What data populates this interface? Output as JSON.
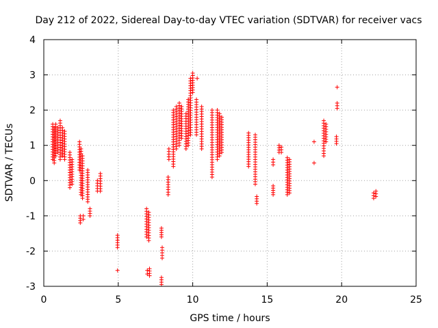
{
  "chart_data": {
    "type": "scatter",
    "title": "Day 212 of 2022, Sidereal Day-to-day VTEC variation (SDTVAR) for receiver vacs",
    "xlabel": "GPS time / hours",
    "ylabel": "SDTVAR / TECUs",
    "xlim": [
      0,
      25
    ],
    "ylim": [
      -3,
      4
    ],
    "xticks": [
      0,
      5,
      10,
      15,
      20,
      25
    ],
    "yticks": [
      -3,
      -2,
      -1,
      0,
      1,
      2,
      3,
      4
    ],
    "grid": true,
    "marker": "plus",
    "color": "#ff0000",
    "clusters": [
      {
        "x": 0.6,
        "y_from": 0.6,
        "y_to": 1.6
      },
      {
        "x": 0.7,
        "y_from": 0.5,
        "y_to": 1.5
      },
      {
        "x": 0.8,
        "y_from": 0.7,
        "y_to": 1.6
      },
      {
        "x": 0.95,
        "y_from": 0.8,
        "y_to": 1.5
      },
      {
        "x": 1.1,
        "y_from": 0.6,
        "y_to": 1.7
      },
      {
        "x": 1.25,
        "y_from": 0.7,
        "y_to": 1.5
      },
      {
        "x": 1.4,
        "y_from": 0.6,
        "y_to": 1.4
      },
      {
        "x": 1.75,
        "y_from": -0.2,
        "y_to": 0.8
      },
      {
        "x": 1.9,
        "y_from": -0.1,
        "y_to": 0.6
      },
      {
        "x": 2.4,
        "y_from": 0.3,
        "y_to": 1.1
      },
      {
        "x": 2.5,
        "y_from": -0.4,
        "y_to": 0.9
      },
      {
        "x": 2.6,
        "y_from": -0.5,
        "y_to": 0.7
      },
      {
        "x": 2.45,
        "y_from": -1.2,
        "y_to": -1.0
      },
      {
        "x": 2.65,
        "y_from": -1.1,
        "y_to": -1.0
      },
      {
        "x": 2.95,
        "y_from": -0.6,
        "y_to": 0.3
      },
      {
        "x": 3.1,
        "y_from": -1.0,
        "y_to": -0.8
      },
      {
        "x": 3.6,
        "y_from": -0.3,
        "y_to": 0.0
      },
      {
        "x": 3.8,
        "y_from": -0.3,
        "y_to": 0.2
      },
      {
        "x": 4.95,
        "y_from": -1.9,
        "y_to": -1.55
      },
      {
        "x": 4.95,
        "y_from": -2.55,
        "y_to": -2.55
      },
      {
        "x": 6.9,
        "y_from": -1.6,
        "y_to": -0.8
      },
      {
        "x": 7.05,
        "y_from": -1.7,
        "y_to": -0.9
      },
      {
        "x": 7.1,
        "y_from": -2.7,
        "y_to": -2.5
      },
      {
        "x": 6.95,
        "y_from": -2.65,
        "y_to": -2.55
      },
      {
        "x": 7.9,
        "y_from": -1.6,
        "y_to": -1.35
      },
      {
        "x": 7.95,
        "y_from": -2.2,
        "y_to": -1.9
      },
      {
        "x": 7.9,
        "y_from": -2.95,
        "y_to": -2.75
      },
      {
        "x": 8.35,
        "y_from": -0.4,
        "y_to": 0.1
      },
      {
        "x": 8.4,
        "y_from": 0.6,
        "y_to": 0.9
      },
      {
        "x": 8.7,
        "y_from": 0.4,
        "y_to": 2.0
      },
      {
        "x": 8.9,
        "y_from": 0.9,
        "y_to": 2.1
      },
      {
        "x": 9.1,
        "y_from": 1.0,
        "y_to": 2.2
      },
      {
        "x": 9.25,
        "y_from": 1.2,
        "y_to": 2.1
      },
      {
        "x": 9.55,
        "y_from": 0.9,
        "y_to": 1.9
      },
      {
        "x": 9.7,
        "y_from": 1.0,
        "y_to": 2.3
      },
      {
        "x": 9.85,
        "y_from": 1.3,
        "y_to": 2.9
      },
      {
        "x": 10.0,
        "y_from": 2.5,
        "y_to": 3.05
      },
      {
        "x": 10.25,
        "y_from": 1.3,
        "y_to": 2.3
      },
      {
        "x": 10.3,
        "y_from": 2.9,
        "y_to": 2.9
      },
      {
        "x": 10.6,
        "y_from": 0.9,
        "y_to": 2.1
      },
      {
        "x": 11.3,
        "y_from": 0.1,
        "y_to": 2.0
      },
      {
        "x": 11.65,
        "y_from": 0.6,
        "y_to": 2.0
      },
      {
        "x": 11.8,
        "y_from": 0.7,
        "y_to": 1.9
      },
      {
        "x": 11.95,
        "y_from": 0.8,
        "y_to": 1.8
      },
      {
        "x": 13.75,
        "y_from": 0.4,
        "y_to": 1.35
      },
      {
        "x": 14.2,
        "y_from": -0.1,
        "y_to": 1.3
      },
      {
        "x": 14.3,
        "y_from": -0.65,
        "y_to": -0.45
      },
      {
        "x": 15.4,
        "y_from": -0.4,
        "y_to": -0.15
      },
      {
        "x": 15.4,
        "y_from": 0.45,
        "y_to": 0.6
      },
      {
        "x": 15.8,
        "y_from": 0.8,
        "y_to": 1.0
      },
      {
        "x": 15.95,
        "y_from": 0.8,
        "y_to": 0.95
      },
      {
        "x": 16.35,
        "y_from": -0.4,
        "y_to": 0.65
      },
      {
        "x": 16.5,
        "y_from": -0.35,
        "y_to": 0.6
      },
      {
        "x": 18.15,
        "y_from": 1.1,
        "y_to": 1.1
      },
      {
        "x": 18.15,
        "y_from": 0.5,
        "y_to": 0.5
      },
      {
        "x": 18.8,
        "y_from": 0.7,
        "y_to": 1.7
      },
      {
        "x": 18.95,
        "y_from": 1.1,
        "y_to": 1.6
      },
      {
        "x": 19.65,
        "y_from": 1.05,
        "y_to": 1.25
      },
      {
        "x": 19.7,
        "y_from": 2.05,
        "y_to": 2.2
      },
      {
        "x": 19.7,
        "y_from": 2.65,
        "y_to": 2.65
      },
      {
        "x": 22.15,
        "y_from": -0.5,
        "y_to": -0.35
      },
      {
        "x": 22.3,
        "y_from": -0.45,
        "y_to": -0.3
      }
    ]
  }
}
